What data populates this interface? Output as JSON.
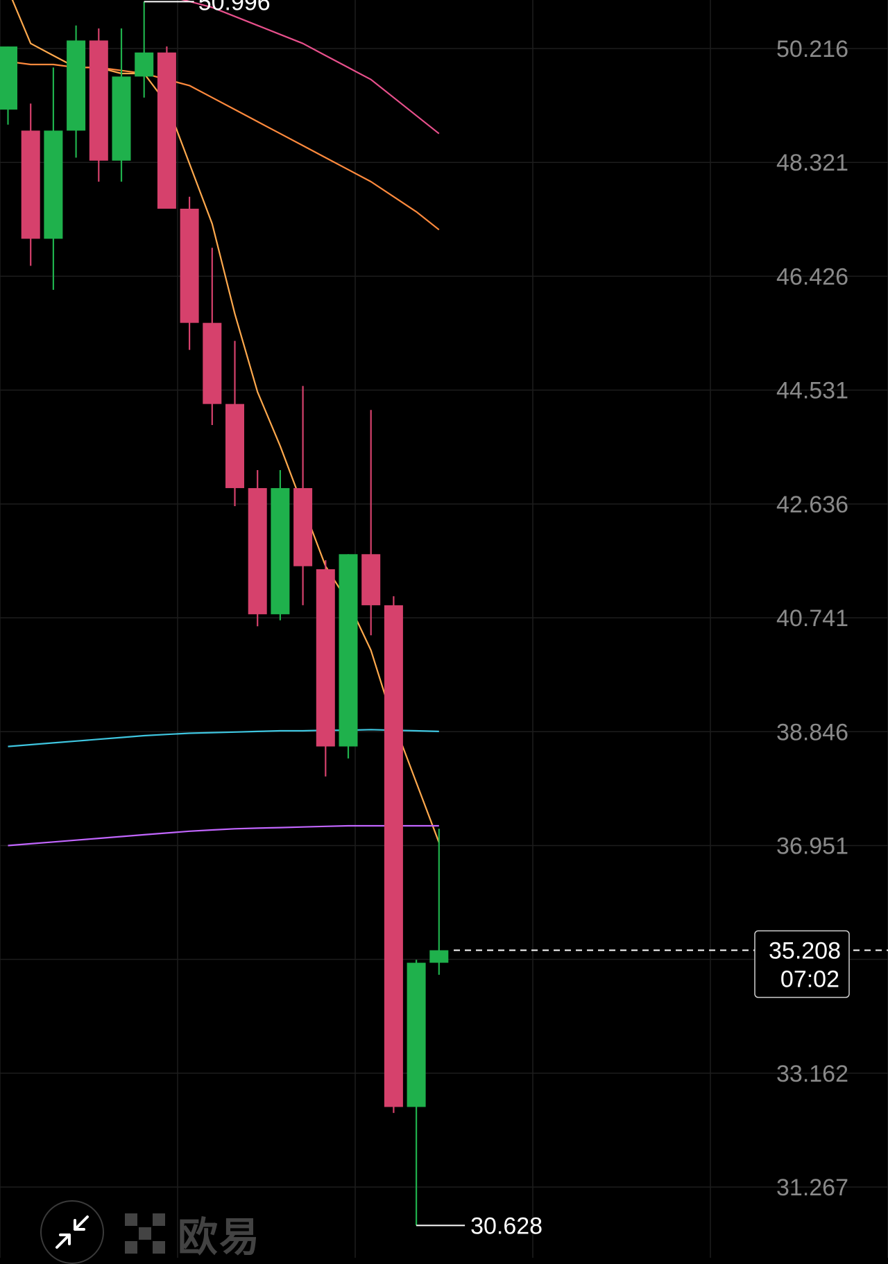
{
  "chart_data": {
    "type": "candlestick",
    "y_axis": {
      "ticks": [
        "50.216",
        "48.321",
        "46.426",
        "44.531",
        "42.636",
        "40.741",
        "38.846",
        "36.951",
        "33.162",
        "31.267"
      ],
      "range": [
        30.1,
        51.0
      ]
    },
    "candles": [
      {
        "open": 49.2,
        "high": 50.25,
        "low": 48.95,
        "close": 50.25
      },
      {
        "open": 48.85,
        "high": 49.3,
        "low": 46.6,
        "close": 47.05
      },
      {
        "open": 47.05,
        "high": 49.9,
        "low": 46.2,
        "close": 48.85
      },
      {
        "open": 48.85,
        "high": 50.6,
        "low": 48.4,
        "close": 50.35
      },
      {
        "open": 50.35,
        "high": 50.55,
        "low": 48.0,
        "close": 48.35
      },
      {
        "open": 48.35,
        "high": 50.55,
        "low": 48.0,
        "close": 49.75
      },
      {
        "open": 49.75,
        "high": 50.996,
        "low": 49.4,
        "close": 50.15
      },
      {
        "open": 50.15,
        "high": 50.25,
        "low": 47.7,
        "close": 47.55
      },
      {
        "open": 47.55,
        "high": 47.75,
        "low": 45.2,
        "close": 45.65
      },
      {
        "open": 45.65,
        "high": 46.9,
        "low": 43.95,
        "close": 44.3
      },
      {
        "open": 44.3,
        "high": 45.35,
        "low": 42.6,
        "close": 42.9
      },
      {
        "open": 42.9,
        "high": 43.2,
        "low": 40.6,
        "close": 40.8
      },
      {
        "open": 40.8,
        "high": 43.2,
        "low": 40.7,
        "close": 42.9
      },
      {
        "open": 42.9,
        "high": 44.6,
        "low": 40.95,
        "close": 41.6
      },
      {
        "open": 41.55,
        "high": 41.7,
        "low": 38.1,
        "close": 38.6
      },
      {
        "open": 38.6,
        "high": 41.8,
        "low": 38.4,
        "close": 41.8
      },
      {
        "open": 41.8,
        "high": 44.2,
        "low": 40.45,
        "close": 40.95
      },
      {
        "open": 40.95,
        "high": 41.1,
        "low": 32.5,
        "close": 32.6
      },
      {
        "open": 32.6,
        "high": 35.05,
        "low": 30.628,
        "close": 35.0
      },
      {
        "open": 35.0,
        "high": 37.23,
        "low": 34.8,
        "close": 35.208
      }
    ],
    "moving_averages": [
      {
        "color": "#ffa94d",
        "values": [
          51.2,
          50.3,
          50.1,
          49.9,
          49.9,
          49.8,
          49.8,
          49.3,
          48.3,
          47.3,
          45.8,
          44.5,
          43.6,
          42.6,
          41.6,
          41.0,
          40.2,
          39.0,
          38.0,
          37.0
        ]
      },
      {
        "color": "#ff8a3d",
        "values": [
          50.0,
          49.95,
          49.95,
          49.9,
          49.9,
          49.85,
          49.8,
          49.7,
          49.6,
          49.4,
          49.2,
          49.0,
          48.8,
          48.6,
          48.4,
          48.2,
          48.0,
          47.75,
          47.5,
          47.2
        ]
      },
      {
        "color": "#e8508c",
        "values": [
          51.5,
          51.4,
          51.35,
          51.3,
          51.25,
          51.2,
          51.15,
          51.1,
          51.0,
          50.9,
          50.75,
          50.6,
          50.45,
          50.3,
          50.1,
          49.9,
          49.7,
          49.4,
          49.1,
          48.8
        ]
      },
      {
        "color": "#3fc6e0",
        "values": [
          38.6,
          38.63,
          38.66,
          38.69,
          38.72,
          38.75,
          38.78,
          38.8,
          38.82,
          38.83,
          38.84,
          38.85,
          38.86,
          38.86,
          38.87,
          38.87,
          38.88,
          38.87,
          38.86,
          38.85
        ]
      },
      {
        "color": "#c266ff",
        "values": [
          36.95,
          36.98,
          37.01,
          37.04,
          37.07,
          37.1,
          37.13,
          37.16,
          37.19,
          37.21,
          37.23,
          37.24,
          37.25,
          37.26,
          37.27,
          37.28,
          37.28,
          37.28,
          37.28,
          37.28
        ]
      }
    ],
    "extreme_labels": {
      "high": "50.996",
      "low": "30.628"
    },
    "current_price": {
      "price": "35.208",
      "countdown": "07:02"
    },
    "colors": {
      "up": "#1fb14c",
      "down": "#d6416c",
      "grid": "#1d1d1d",
      "background": "#000000"
    },
    "grid": true
  },
  "watermark": {
    "text": "欧易"
  },
  "icons": {
    "minimize": "minimize-arrows-icon",
    "logo": "okx-logo-icon"
  }
}
